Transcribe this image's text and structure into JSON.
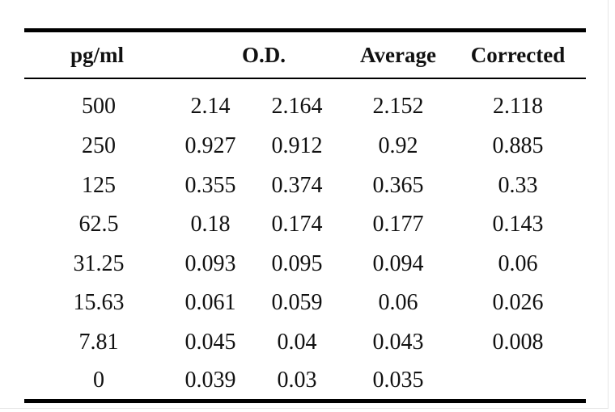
{
  "table": {
    "headers": {
      "concentration": "pg/ml",
      "od": "O.D.",
      "average": "Average",
      "corrected": "Corrected"
    },
    "rows": [
      [
        "500",
        "2.14",
        "2.164",
        "2.152",
        "2.118"
      ],
      [
        "250",
        "0.927",
        "0.912",
        "0.92",
        "0.885"
      ],
      [
        "125",
        "0.355",
        "0.374",
        "0.365",
        "0.33"
      ],
      [
        "62.5",
        "0.18",
        "0.174",
        "0.177",
        "0.143"
      ],
      [
        "31.25",
        "0.093",
        "0.095",
        "0.094",
        "0.06"
      ],
      [
        "15.63",
        "0.061",
        "0.059",
        "0.06",
        "0.026"
      ],
      [
        "7.81",
        "0.045",
        "0.04",
        "0.043",
        "0.008"
      ],
      [
        "0",
        "0.039",
        "0.03",
        "0.035",
        ""
      ]
    ]
  },
  "chart_data": {
    "type": "table",
    "columns": [
      "pg/ml",
      "O.D.",
      "O.D.",
      "Average",
      "Corrected"
    ],
    "rows": [
      [
        500,
        2.14,
        2.164,
        2.152,
        2.118
      ],
      [
        250,
        0.927,
        0.912,
        0.92,
        0.885
      ],
      [
        125,
        0.355,
        0.374,
        0.365,
        0.33
      ],
      [
        62.5,
        0.18,
        0.174,
        0.177,
        0.143
      ],
      [
        31.25,
        0.093,
        0.095,
        0.094,
        0.06
      ],
      [
        15.63,
        0.061,
        0.059,
        0.06,
        0.026
      ],
      [
        7.81,
        0.045,
        0.04,
        0.043,
        0.008
      ],
      [
        0,
        0.039,
        0.03,
        0.035,
        null
      ]
    ]
  }
}
